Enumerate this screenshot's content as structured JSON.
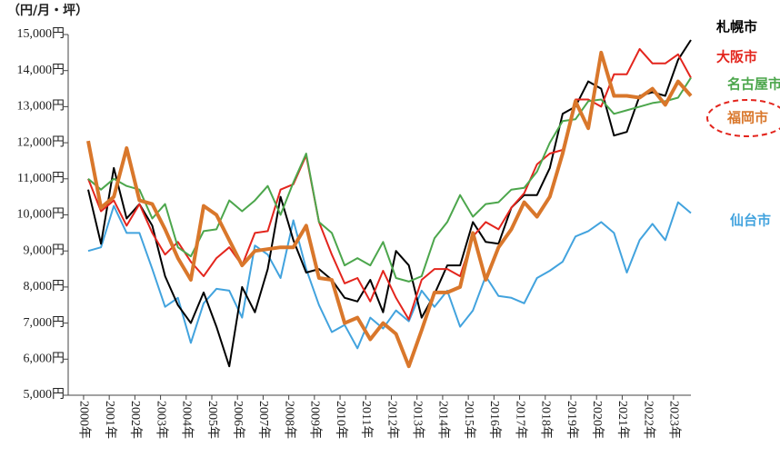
{
  "chart_data": {
    "type": "line",
    "y_label": "（円/月・坪）",
    "categories": [
      "2000年",
      null,
      "2001年",
      null,
      "2002年",
      null,
      "2003年",
      null,
      "2004年",
      null,
      "2005年",
      null,
      "2006年",
      null,
      "2007年",
      null,
      "2008年",
      null,
      "2009年",
      null,
      "2010年",
      null,
      "2011年",
      null,
      "2012年",
      null,
      "2013年",
      null,
      "2014年",
      null,
      "2015年",
      null,
      "2016年",
      null,
      "2017年",
      null,
      "2018年",
      null,
      "2019年",
      null,
      "2020年",
      null,
      "2021年",
      null,
      "2022年",
      null,
      "2023年",
      null
    ],
    "ylim": [
      5000,
      15000
    ],
    "yticks": [
      {
        "value": 5000,
        "label": "5,000円"
      },
      {
        "value": 6000,
        "label": "6,000円"
      },
      {
        "value": 7000,
        "label": "7,000円"
      },
      {
        "value": 8000,
        "label": "8,000円"
      },
      {
        "value": 9000,
        "label": "9,000円"
      },
      {
        "value": 10000,
        "label": "10,000円"
      },
      {
        "value": 11000,
        "label": "11,000円"
      },
      {
        "value": 12000,
        "label": "12,000円"
      },
      {
        "value": 13000,
        "label": "13,000円"
      },
      {
        "value": 14000,
        "label": "14,000円"
      },
      {
        "value": 15000,
        "label": "15,000円"
      }
    ],
    "series": [
      {
        "name": "仙台市",
        "color": "#42a3de",
        "values": [
          9000,
          9100,
          10250,
          9500,
          9500,
          8500,
          7450,
          7700,
          6450,
          7550,
          7950,
          7900,
          7150,
          9150,
          8900,
          8250,
          9850,
          8500,
          7500,
          6750,
          6950,
          6300,
          7150,
          6850,
          7350,
          7050,
          7900,
          7450,
          7900,
          6900,
          7350,
          8300,
          7750,
          7700,
          7550,
          8250,
          8450,
          8700,
          9400,
          9550,
          9800,
          9500,
          8400,
          9300,
          9750,
          9300,
          10350,
          10050
        ]
      },
      {
        "name": "札幌市",
        "color": "#000000",
        "values": [
          10700,
          9200,
          11300,
          9900,
          10300,
          9700,
          8300,
          7500,
          7000,
          7850,
          6900,
          5800,
          8000,
          7300,
          8500,
          10500,
          9300,
          8400,
          8500,
          8200,
          7700,
          7600,
          8200,
          7300,
          9000,
          8600,
          7150,
          7800,
          8600,
          8600,
          9800,
          9250,
          9200,
          10200,
          10550,
          10550,
          11300,
          12800,
          13000,
          13700,
          13500,
          12200,
          12300,
          13300,
          13400,
          13300,
          14300,
          14850
        ]
      },
      {
        "name": "大阪市",
        "color": "#e3251d",
        "values": [
          11000,
          10100,
          10400,
          9700,
          10300,
          9500,
          8900,
          9250,
          8700,
          8300,
          8800,
          9100,
          8600,
          9500,
          9550,
          10700,
          10850,
          11650,
          9800,
          8900,
          8100,
          8250,
          7600,
          8450,
          7700,
          7100,
          8200,
          8500,
          8500,
          8300,
          9400,
          9800,
          9600,
          10200,
          10600,
          11400,
          11700,
          11800,
          13200,
          13200,
          13000,
          13900,
          13900,
          14600,
          14200,
          14200,
          14450,
          13800
        ]
      },
      {
        "name": "名古屋市",
        "color": "#4ca64c",
        "values": [
          11000,
          10700,
          11000,
          10800,
          10700,
          9900,
          10300,
          9100,
          8850,
          9550,
          9600,
          10400,
          10100,
          10400,
          10800,
          10000,
          10900,
          11700,
          9800,
          9500,
          8600,
          8800,
          8600,
          9250,
          8250,
          8150,
          8300,
          9350,
          9800,
          10550,
          9950,
          10300,
          10350,
          10700,
          10750,
          11200,
          12000,
          12600,
          12650,
          13150,
          13200,
          12800,
          12900,
          13000,
          13100,
          13150,
          13250,
          13800
        ]
      },
      {
        "name": "福岡市",
        "color": "#d9772b",
        "values": [
          12050,
          10200,
          10500,
          11850,
          10400,
          10300,
          9600,
          8800,
          8200,
          10250,
          10000,
          9300,
          8600,
          9000,
          9050,
          9100,
          9100,
          9700,
          8250,
          8200,
          7000,
          7150,
          6550,
          7000,
          6700,
          5800,
          6800,
          7850,
          7850,
          8000,
          9500,
          8200,
          9100,
          9600,
          10350,
          9950,
          10500,
          11700,
          13150,
          12400,
          14500,
          13300,
          13300,
          13250,
          13500,
          13050,
          13700,
          13300
        ]
      }
    ]
  }
}
